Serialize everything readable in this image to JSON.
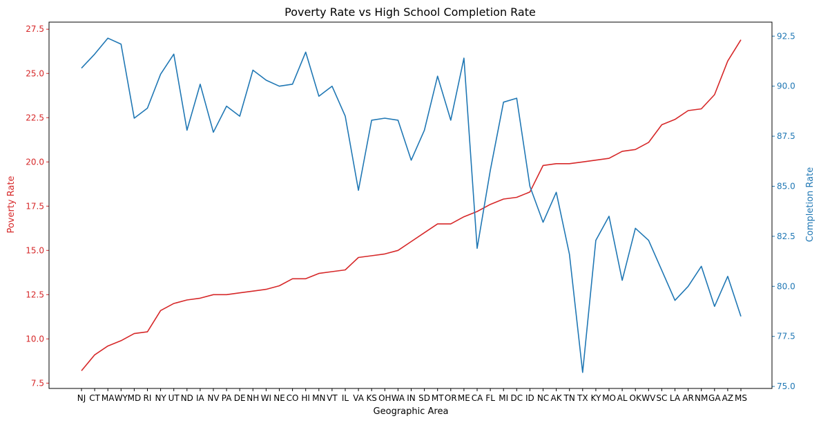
{
  "chart_data": {
    "type": "line",
    "title": "Poverty Rate vs High School Completion Rate",
    "xlabel": "Geographic Area",
    "ylabel_left": "Poverty Rate",
    "ylabel_right": "Completion Rate",
    "categories": [
      "NJ",
      "CT",
      "MA",
      "WY",
      "MD",
      "RI",
      "NY",
      "UT",
      "ND",
      "IA",
      "NV",
      "PA",
      "DE",
      "NH",
      "WI",
      "NE",
      "CO",
      "HI",
      "MN",
      "VT",
      "IL",
      "VA",
      "KS",
      "OH",
      "WA",
      "IN",
      "SD",
      "MT",
      "OR",
      "ME",
      "CA",
      "FL",
      "MI",
      "DC",
      "ID",
      "NC",
      "AK",
      "TN",
      "TX",
      "KY",
      "MO",
      "AL",
      "OK",
      "WV",
      "SC",
      "LA",
      "AR",
      "NM",
      "GA",
      "AZ",
      "MS"
    ],
    "ylim_left": [
      7.2,
      27.9
    ],
    "yticks_left": [
      "7.5",
      "10.0",
      "12.5",
      "15.0",
      "17.5",
      "20.0",
      "22.5",
      "25.0",
      "27.5"
    ],
    "ylim_right": [
      74.9,
      93.2
    ],
    "yticks_right": [
      "75.0",
      "77.5",
      "80.0",
      "82.5",
      "85.0",
      "87.5",
      "90.0",
      "92.5"
    ],
    "grid": false,
    "series": [
      {
        "name": "Poverty Rate",
        "axis": "left",
        "color": "#d62728",
        "values": [
          8.2,
          9.1,
          9.6,
          9.9,
          10.3,
          10.4,
          11.6,
          12.0,
          12.2,
          12.3,
          12.5,
          12.5,
          12.6,
          12.7,
          12.8,
          13.0,
          13.4,
          13.4,
          13.7,
          13.8,
          13.9,
          14.6,
          14.7,
          14.8,
          15.0,
          15.5,
          16.0,
          16.5,
          16.5,
          16.9,
          17.2,
          17.6,
          17.9,
          18.0,
          18.3,
          19.8,
          19.9,
          19.9,
          20.0,
          20.1,
          20.2,
          20.6,
          20.7,
          21.1,
          22.1,
          22.4,
          22.9,
          23.0,
          23.8,
          25.7,
          26.9
        ]
      },
      {
        "name": "Completion Rate",
        "axis": "right",
        "color": "#1f77b4",
        "values": [
          90.9,
          91.6,
          92.4,
          92.1,
          88.4,
          88.9,
          90.6,
          91.6,
          87.8,
          90.1,
          87.7,
          89.0,
          88.5,
          90.8,
          90.3,
          90.0,
          90.1,
          91.7,
          89.5,
          90.0,
          88.5,
          84.8,
          88.3,
          88.4,
          88.3,
          86.3,
          87.8,
          90.5,
          88.3,
          91.4,
          81.9,
          85.8,
          89.2,
          89.4,
          85.0,
          83.2,
          84.7,
          81.6,
          75.7,
          82.3,
          83.5,
          80.3,
          82.9,
          82.3,
          80.8,
          79.3,
          80.0,
          81.0,
          79.0,
          80.5,
          78.5
        ]
      }
    ]
  }
}
